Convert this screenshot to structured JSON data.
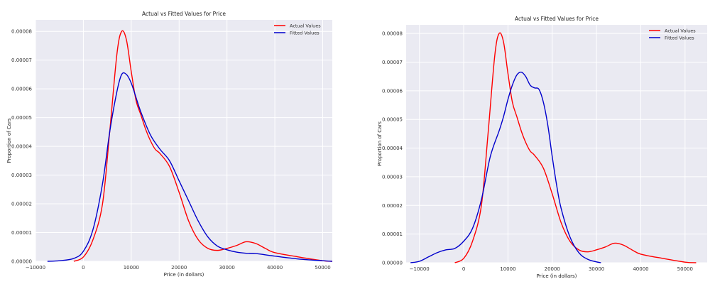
{
  "chart_data": [
    {
      "type": "line",
      "title": "Actual vs Fitted Values for Price",
      "xlabel": "Price (in dollars)",
      "ylabel": "Proportion of Cars",
      "xlim": [
        -10000,
        52000
      ],
      "ylim": [
        0,
        8.4e-05
      ],
      "xticks": [
        -10000,
        0,
        10000,
        20000,
        30000,
        40000,
        50000
      ],
      "xtick_labels": [
        "−10000",
        "0",
        "10000",
        "20000",
        "30000",
        "40000",
        "50000"
      ],
      "yticks": [
        0,
        1e-05,
        2e-05,
        3e-05,
        4e-05,
        5e-05,
        6e-05,
        7e-05,
        8e-05
      ],
      "ytick_labels": [
        "0.00000",
        "0.00001",
        "0.00002",
        "0.00003",
        "0.00004",
        "0.00005",
        "0.00006",
        "0.00007",
        "0.00008"
      ],
      "grid": true,
      "legend_position": "top-right",
      "series": [
        {
          "name": "Actual Values",
          "color": "#ff0000",
          "x": [
            -2000,
            0,
            2000,
            4000,
            5500,
            7000,
            8000,
            9000,
            10000,
            11000,
            12000,
            13000,
            14000,
            15000,
            16000,
            18000,
            20000,
            22000,
            24000,
            26000,
            28000,
            30000,
            32000,
            34000,
            36000,
            38000,
            40000,
            45000,
            50000,
            52000
          ],
          "y": [
            0,
            1.5e-06,
            7.5e-06,
            2e-05,
            4.5e-05,
            7.2e-05,
            8e-05,
            7.7e-05,
            6.6e-05,
            5.6e-05,
            5.1e-05,
            4.6e-05,
            4.2e-05,
            3.9e-05,
            3.75e-05,
            3.3e-05,
            2.4e-05,
            1.4e-05,
            7.5e-06,
            4.5e-06,
            3.8e-06,
            4.5e-06,
            5.5e-06,
            6.8e-06,
            6.2e-06,
            4.5e-06,
            3e-06,
            1.5e-06,
            2e-07,
            0
          ]
        },
        {
          "name": "Fitted Values",
          "color": "#0000cc",
          "x": [
            -7500,
            -5000,
            -2000,
            0,
            2000,
            4000,
            5500,
            7000,
            8000,
            9000,
            10000,
            11000,
            12000,
            14000,
            16000,
            18000,
            20000,
            22000,
            24000,
            26000,
            28000,
            30000,
            32000,
            34000,
            36000,
            40000,
            45000,
            50000,
            52000
          ],
          "y": [
            0,
            2e-07,
            1e-06,
            3.5e-06,
            1.1e-05,
            2.7e-05,
            4.5e-05,
            5.9e-05,
            6.5e-05,
            6.5e-05,
            6.2e-05,
            5.7e-05,
            5.2e-05,
            4.4e-05,
            3.9e-05,
            3.5e-05,
            2.8e-05,
            2.1e-05,
            1.4e-05,
            8.5e-06,
            5.3e-06,
            4e-06,
            3.2e-06,
            2.8e-06,
            2.7e-06,
            1.8e-06,
            8e-07,
            2e-07,
            0
          ]
        }
      ]
    },
    {
      "type": "line",
      "title": "Actual vs Fitted Values for Price",
      "xlabel": "Price (in dollars)",
      "ylabel": "Proportion of Cars",
      "xlim": [
        -13000,
        55000
      ],
      "ylim": [
        0,
        8.3e-05
      ],
      "xticks": [
        -10000,
        0,
        10000,
        20000,
        30000,
        40000,
        50000
      ],
      "xtick_labels": [
        "−10000",
        "0",
        "10000",
        "20000",
        "30000",
        "40000",
        "50000"
      ],
      "yticks": [
        0,
        1e-05,
        2e-05,
        3e-05,
        4e-05,
        5e-05,
        6e-05,
        7e-05,
        8e-05
      ],
      "ytick_labels": [
        "0.00000",
        "0.00001",
        "0.00002",
        "0.00003",
        "0.00004",
        "0.00005",
        "0.00006",
        "0.00007",
        "0.00008"
      ],
      "grid": true,
      "legend_position": "top-right",
      "series": [
        {
          "name": "Actual Values",
          "color": "#ff0000",
          "x": [
            -2000,
            0,
            2000,
            4000,
            5500,
            7000,
            8000,
            9000,
            10000,
            11000,
            12000,
            13000,
            14000,
            15000,
            16000,
            18000,
            20000,
            22000,
            24000,
            26000,
            28000,
            30000,
            32000,
            34000,
            36000,
            38000,
            40000,
            45000,
            50000,
            52500
          ],
          "y": [
            0,
            1.5e-06,
            7.5e-06,
            2e-05,
            4.5e-05,
            7.2e-05,
            8e-05,
            7.7e-05,
            6.6e-05,
            5.6e-05,
            5.1e-05,
            4.6e-05,
            4.2e-05,
            3.9e-05,
            3.75e-05,
            3.3e-05,
            2.4e-05,
            1.4e-05,
            7.5e-06,
            4.5e-06,
            3.8e-06,
            4.5e-06,
            5.5e-06,
            6.8e-06,
            6.2e-06,
            4.5e-06,
            3e-06,
            1.5e-06,
            2e-07,
            0
          ]
        },
        {
          "name": "Fitted Values",
          "color": "#0000cc",
          "x": [
            -12000,
            -10000,
            -8000,
            -6000,
            -4000,
            -2000,
            0,
            2000,
            4000,
            6000,
            8000,
            9000,
            10000,
            11000,
            12000,
            13000,
            14000,
            15000,
            16000,
            17000,
            18000,
            19000,
            20000,
            21000,
            22000,
            24000,
            26000,
            28000,
            30000,
            31000
          ],
          "y": [
            0,
            5e-07,
            2e-06,
            3.5e-06,
            4.5e-06,
            5e-06,
            7.5e-06,
            1.2e-05,
            2.2e-05,
            3.7e-05,
            4.6e-05,
            5.1e-05,
            5.7e-05,
            6.2e-05,
            6.55e-05,
            6.65e-05,
            6.5e-05,
            6.2e-05,
            6.1e-05,
            6.05e-05,
            5.6e-05,
            4.8e-05,
            3.7e-05,
            2.7e-05,
            1.9e-05,
            9e-06,
            3.5e-06,
            1.2e-06,
            3e-07,
            0
          ]
        }
      ]
    }
  ]
}
